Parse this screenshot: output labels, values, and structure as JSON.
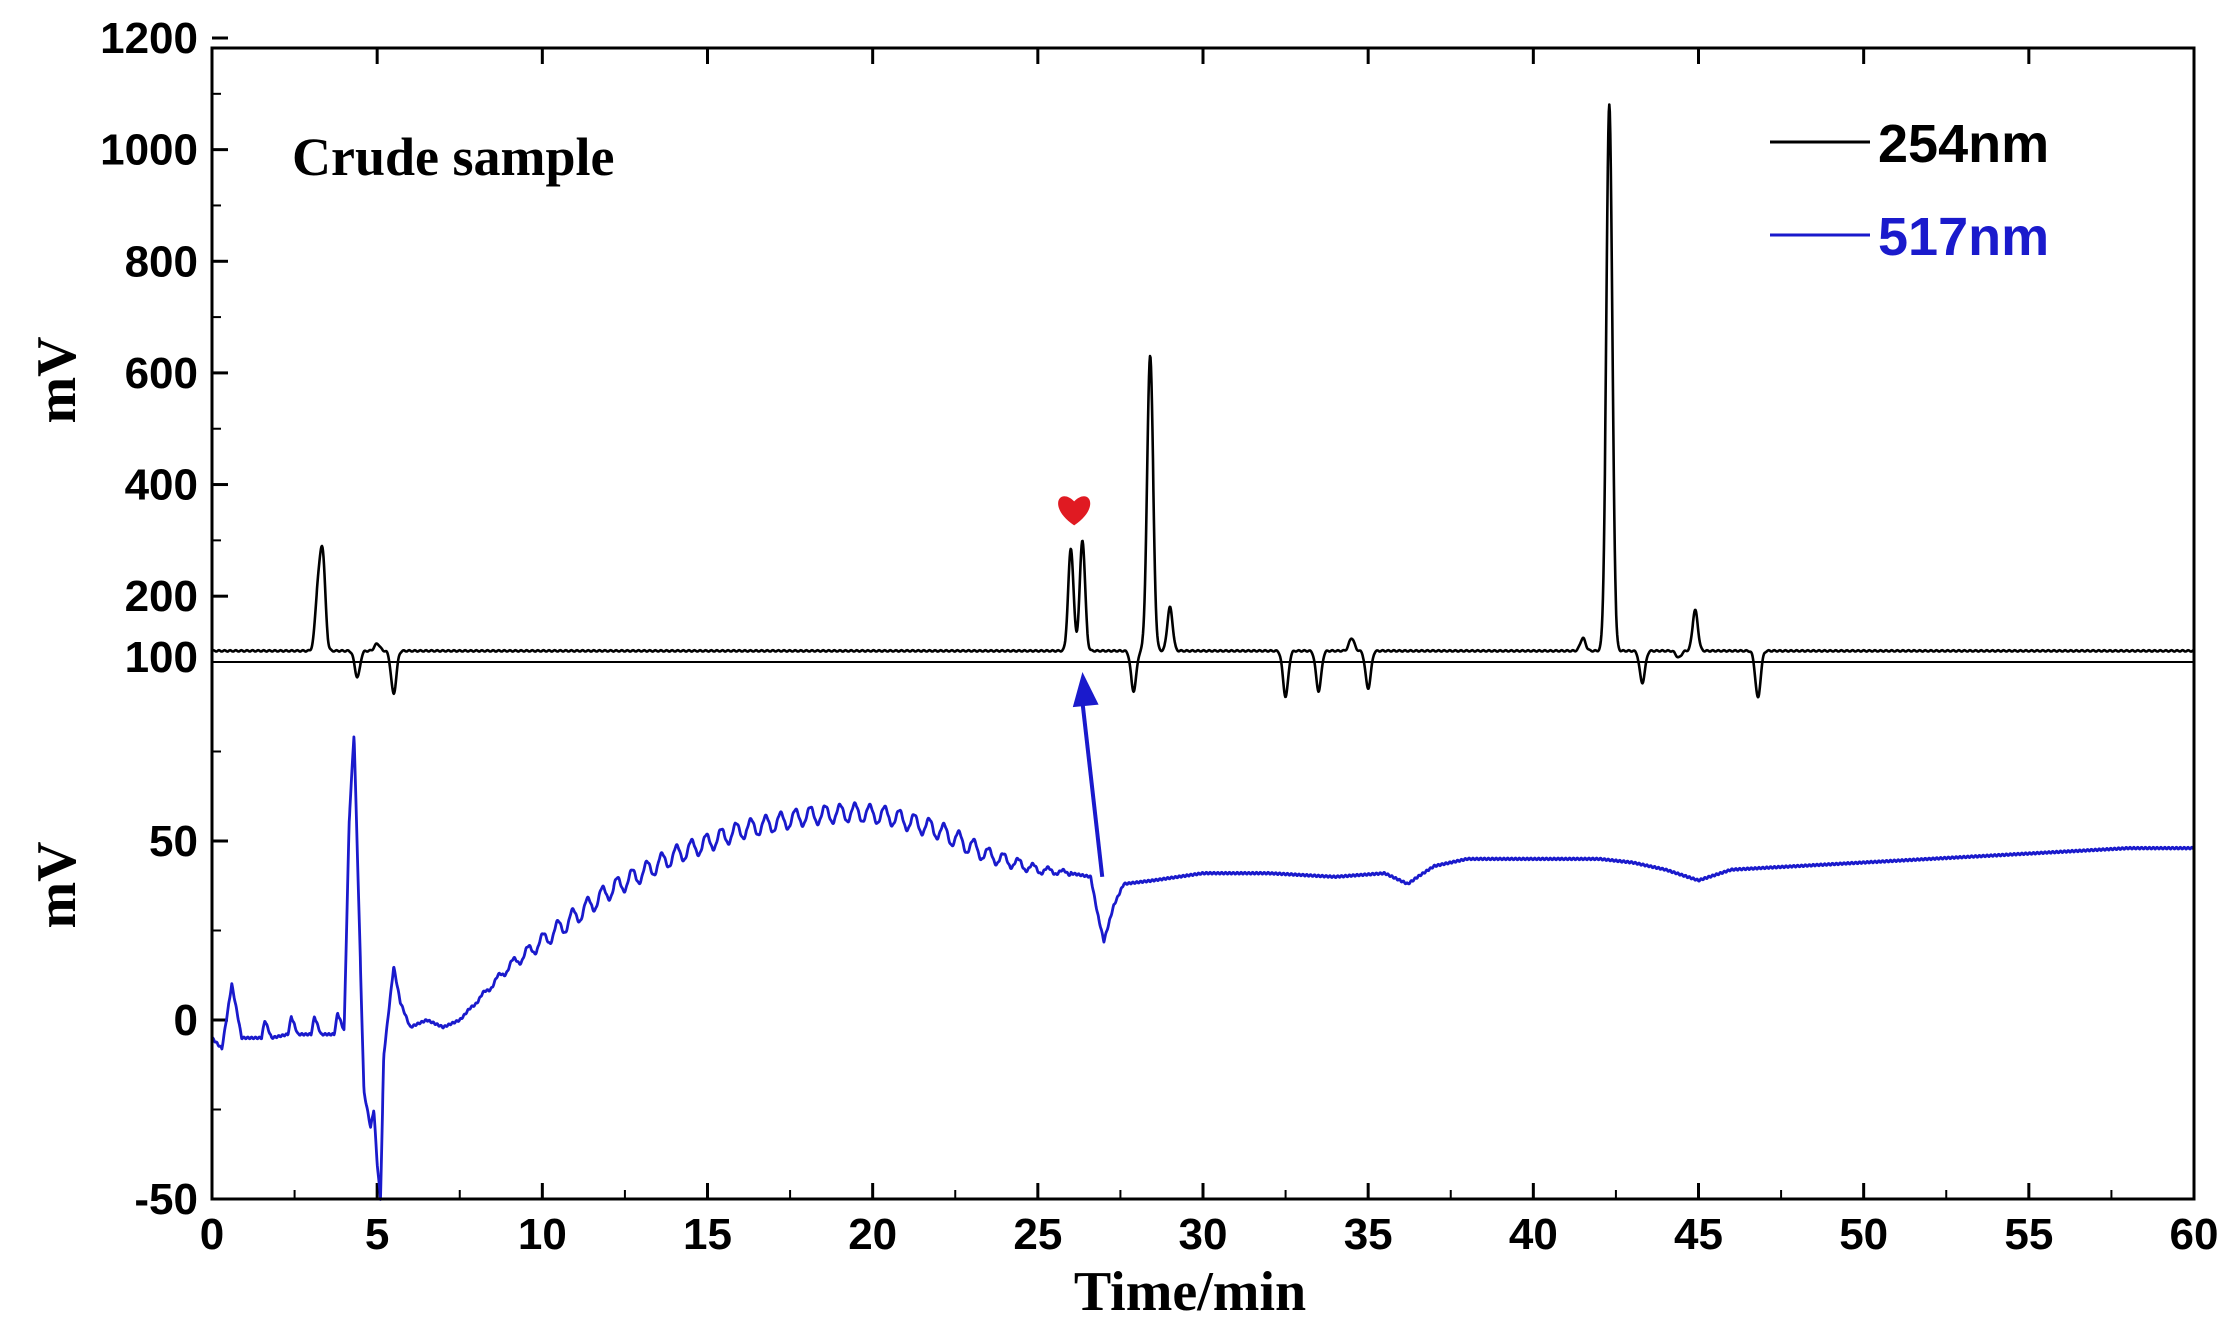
{
  "chart_data": {
    "type": "line",
    "panels": [
      {
        "name": "top",
        "series_name": "254nm",
        "ylabel": "mV",
        "ylim": [
          100,
          1200
        ],
        "yticks": [
          200,
          400,
          600,
          800,
          1000,
          1200
        ],
        "baseline_label": "100",
        "color": "#000000",
        "peaks": [
          {
            "t": 3.2,
            "h": 200
          },
          {
            "t": 3.35,
            "h": 270
          },
          {
            "t": 4.4,
            "h": 55
          },
          {
            "t": 5.0,
            "h": 115
          },
          {
            "t": 5.5,
            "h": 25
          },
          {
            "t": 26.0,
            "h": 285
          },
          {
            "t": 26.35,
            "h": 300
          },
          {
            "t": 27.9,
            "h": 30
          },
          {
            "t": 28.4,
            "h": 632
          },
          {
            "t": 29.0,
            "h": 180
          },
          {
            "t": 32.5,
            "h": 20
          },
          {
            "t": 33.5,
            "h": 30
          },
          {
            "t": 34.5,
            "h": 125
          },
          {
            "t": 35.0,
            "h": 35
          },
          {
            "t": 41.5,
            "h": 125
          },
          {
            "t": 42.3,
            "h": 1082
          },
          {
            "t": 43.3,
            "h": 45
          },
          {
            "t": 44.4,
            "h": 90
          },
          {
            "t": 44.9,
            "h": 175
          },
          {
            "t": 46.8,
            "h": 18
          }
        ]
      },
      {
        "name": "bottom",
        "series_name": "517nm",
        "ylabel": "mV",
        "ylim": [
          -50,
          100
        ],
        "yticks": [
          -50,
          0,
          50
        ],
        "color": "#1a1acc",
        "points": [
          [
            0,
            -5
          ],
          [
            0.3,
            -8
          ],
          [
            0.6,
            10
          ],
          [
            0.9,
            -5
          ],
          [
            1.5,
            -5
          ],
          [
            1.6,
            0
          ],
          [
            1.8,
            -5
          ],
          [
            2.3,
            -4
          ],
          [
            2.4,
            1
          ],
          [
            2.6,
            -4
          ],
          [
            3.0,
            -4
          ],
          [
            3.1,
            1
          ],
          [
            3.3,
            -4
          ],
          [
            3.7,
            -4
          ],
          [
            3.8,
            2
          ],
          [
            4.0,
            -3
          ],
          [
            4.15,
            55
          ],
          [
            4.3,
            80
          ],
          [
            4.45,
            30
          ],
          [
            4.6,
            -20
          ],
          [
            4.8,
            -30
          ],
          [
            4.9,
            -25
          ],
          [
            5.0,
            -40
          ],
          [
            5.1,
            -50
          ],
          [
            5.2,
            -10
          ],
          [
            5.5,
            15
          ],
          [
            5.7,
            5
          ],
          [
            6.0,
            -2
          ],
          [
            6.5,
            0
          ],
          [
            7.0,
            -2
          ],
          [
            7.5,
            0
          ],
          [
            8.0,
            5
          ],
          [
            9.0,
            15
          ],
          [
            10.0,
            22
          ],
          [
            12.0,
            36
          ],
          [
            14.0,
            46
          ],
          [
            16.0,
            53
          ],
          [
            18.0,
            57
          ],
          [
            19.5,
            58
          ],
          [
            20.5,
            57
          ],
          [
            22.0,
            53
          ],
          [
            23.5,
            46
          ],
          [
            25.0,
            42
          ],
          [
            26.0,
            41
          ],
          [
            26.6,
            40
          ],
          [
            26.8,
            30
          ],
          [
            27.0,
            22
          ],
          [
            27.3,
            32
          ],
          [
            27.6,
            38
          ],
          [
            28.5,
            39
          ],
          [
            30.0,
            41
          ],
          [
            32.0,
            41
          ],
          [
            34.0,
            40
          ],
          [
            35.5,
            41
          ],
          [
            36.2,
            38
          ],
          [
            36.5,
            40
          ],
          [
            37.0,
            43
          ],
          [
            38.0,
            45
          ],
          [
            40.0,
            45
          ],
          [
            42.0,
            45
          ],
          [
            43.0,
            44
          ],
          [
            44.0,
            42
          ],
          [
            45.0,
            39
          ],
          [
            46.0,
            42
          ],
          [
            48.0,
            43
          ],
          [
            50.0,
            44
          ],
          [
            52.0,
            45
          ],
          [
            54.0,
            46
          ],
          [
            56.0,
            47
          ],
          [
            58.0,
            48
          ],
          [
            60.0,
            48
          ]
        ],
        "oscillation": {
          "start": 7.5,
          "end": 26,
          "amplitude": 2.5,
          "period": 0.45
        }
      }
    ],
    "x": {
      "label": "Time/min",
      "lim": [
        0,
        60
      ],
      "ticks": [
        0,
        5,
        10,
        15,
        20,
        25,
        30,
        35,
        40,
        45,
        50,
        55,
        60
      ]
    },
    "annotations": {
      "title": "Crude sample",
      "marker": "heart",
      "marker_time": 26.1,
      "marker_color": "#e01a22",
      "arrow_color": "#1a1acc"
    },
    "legend": [
      {
        "label": "254nm",
        "color": "#000000"
      },
      {
        "label": "517nm",
        "color": "#1a1acc"
      }
    ]
  }
}
